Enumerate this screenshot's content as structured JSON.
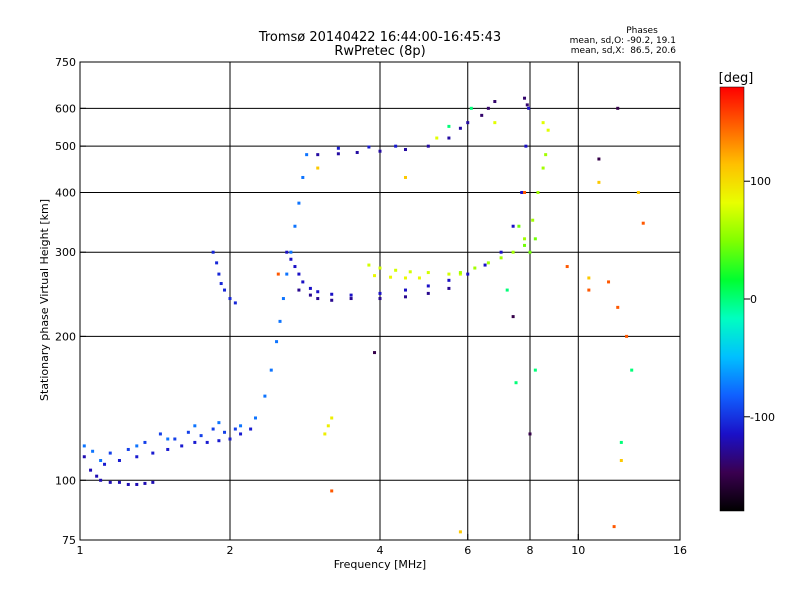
{
  "chart_data": {
    "type": "scatter",
    "title": "Tromsø 20140422 16:44:00-16:45:43",
    "subtitle": "RwPretec (8p)",
    "xlabel": "Frequency [MHz]",
    "ylabel": "Stationary phase Virtual Height [km]",
    "x_scale": "log",
    "y_scale": "log",
    "xlim": [
      1,
      16
    ],
    "ylim": [
      75,
      750
    ],
    "x_ticks": [
      1,
      2,
      4,
      6,
      8,
      10,
      16
    ],
    "y_ticks": [
      75,
      100,
      200,
      300,
      400,
      500,
      600,
      750
    ],
    "grid": true,
    "stats": {
      "title": "Phases",
      "line1": "mean, sd,O: -90.2, 19.1",
      "line2": "mean, sd,X:  86.5, 20.6"
    },
    "colorbar": {
      "label": "[deg]",
      "range": [
        -180,
        180
      ],
      "ticks": [
        {
          "value": 100,
          "label": "100"
        },
        {
          "value": 0,
          "label": "0"
        },
        {
          "value": -100,
          "label": "-100"
        }
      ],
      "colors": [
        "#000000",
        "#3a0050",
        "#1a10c8",
        "#1060ff",
        "#00c0ff",
        "#00ffc0",
        "#00ff30",
        "#80ff00",
        "#e8ff00",
        "#ffc000",
        "#ff6000",
        "#ff0000"
      ]
    },
    "series": [
      {
        "phase": -120,
        "points": [
          [
            1.02,
            112
          ],
          [
            1.05,
            105
          ],
          [
            1.08,
            102
          ],
          [
            1.1,
            100
          ],
          [
            1.15,
            99
          ],
          [
            1.2,
            99
          ],
          [
            1.25,
            98
          ],
          [
            1.3,
            98
          ],
          [
            1.35,
            98.5
          ],
          [
            1.4,
            99
          ]
        ]
      },
      {
        "phase": -110,
        "points": [
          [
            1.12,
            108
          ],
          [
            1.2,
            110
          ],
          [
            1.3,
            112
          ],
          [
            1.4,
            114
          ],
          [
            1.5,
            116
          ],
          [
            1.6,
            118
          ],
          [
            1.7,
            120
          ],
          [
            1.8,
            120
          ],
          [
            1.9,
            121
          ],
          [
            2.0,
            122
          ],
          [
            2.1,
            125
          ],
          [
            2.2,
            128
          ]
        ]
      },
      {
        "phase": -95,
        "points": [
          [
            1.15,
            114
          ],
          [
            1.25,
            116
          ],
          [
            1.35,
            120
          ],
          [
            1.45,
            125
          ],
          [
            1.55,
            122
          ],
          [
            1.65,
            126
          ],
          [
            1.75,
            124
          ],
          [
            1.85,
            128
          ],
          [
            1.95,
            126
          ],
          [
            2.05,
            128
          ]
        ]
      },
      {
        "phase": -75,
        "points": [
          [
            1.02,
            118
          ],
          [
            1.06,
            115
          ],
          [
            1.1,
            110
          ],
          [
            1.3,
            118
          ],
          [
            1.5,
            122
          ],
          [
            1.7,
            130
          ],
          [
            1.9,
            132
          ],
          [
            2.1,
            130
          ],
          [
            2.25,
            135
          ],
          [
            2.35,
            150
          ],
          [
            2.42,
            170
          ],
          [
            2.48,
            195
          ],
          [
            2.52,
            215
          ],
          [
            2.56,
            240
          ],
          [
            2.6,
            270
          ],
          [
            2.65,
            300
          ],
          [
            2.7,
            340
          ],
          [
            2.75,
            380
          ],
          [
            2.8,
            430
          ],
          [
            2.85,
            480
          ]
        ]
      },
      {
        "phase": -115,
        "points": [
          [
            2.6,
            300
          ],
          [
            2.65,
            290
          ],
          [
            2.7,
            280
          ],
          [
            2.75,
            270
          ],
          [
            2.8,
            260
          ],
          [
            2.9,
            252
          ],
          [
            3.0,
            248
          ],
          [
            3.2,
            245
          ],
          [
            3.5,
            244
          ],
          [
            4.0,
            246
          ],
          [
            4.5,
            250
          ],
          [
            5.0,
            255
          ],
          [
            5.5,
            262
          ],
          [
            6.0,
            270
          ],
          [
            6.5,
            282
          ],
          [
            7.0,
            300
          ],
          [
            7.4,
            340
          ],
          [
            7.7,
            400
          ],
          [
            7.85,
            500
          ],
          [
            7.95,
            600
          ]
        ]
      },
      {
        "phase": -130,
        "points": [
          [
            2.75,
            250
          ],
          [
            2.9,
            244
          ],
          [
            3.0,
            240
          ],
          [
            3.2,
            238
          ],
          [
            3.5,
            240
          ],
          [
            4.0,
            240
          ],
          [
            4.5,
            242
          ],
          [
            5.0,
            246
          ],
          [
            5.5,
            252
          ]
        ]
      },
      {
        "phase": -125,
        "points": [
          [
            3.0,
            480
          ],
          [
            3.3,
            482
          ],
          [
            3.6,
            485
          ],
          [
            4.0,
            488
          ],
          [
            4.5,
            492
          ],
          [
            5.0,
            500
          ],
          [
            5.5,
            520
          ],
          [
            5.8,
            545
          ],
          [
            6.0,
            560
          ]
        ]
      },
      {
        "phase": -110,
        "points": [
          [
            3.3,
            495
          ],
          [
            3.8,
            498
          ],
          [
            4.3,
            500
          ]
        ]
      },
      {
        "phase": -105,
        "points": [
          [
            1.85,
            300
          ],
          [
            1.88,
            285
          ],
          [
            1.9,
            270
          ],
          [
            1.92,
            258
          ],
          [
            1.95,
            250
          ],
          [
            2.0,
            240
          ],
          [
            2.05,
            235
          ]
        ]
      },
      {
        "phase": 75,
        "points": [
          [
            3.8,
            282
          ],
          [
            4.0,
            278
          ],
          [
            4.3,
            275
          ],
          [
            4.6,
            273
          ],
          [
            5.0,
            272
          ],
          [
            5.5,
            270
          ],
          [
            5.8,
            270
          ]
        ]
      },
      {
        "phase": 85,
        "points": [
          [
            3.9,
            268
          ],
          [
            4.2,
            266
          ],
          [
            4.5,
            265
          ],
          [
            4.8,
            265
          ]
        ]
      },
      {
        "phase": 60,
        "points": [
          [
            5.8,
            272
          ],
          [
            6.2,
            278
          ],
          [
            6.6,
            285
          ],
          [
            7.0,
            292
          ],
          [
            7.4,
            300
          ],
          [
            7.8,
            320
          ],
          [
            8.1,
            350
          ],
          [
            8.3,
            400
          ],
          [
            8.5,
            450
          ],
          [
            8.6,
            480
          ]
        ]
      },
      {
        "phase": 45,
        "points": [
          [
            7.6,
            340
          ],
          [
            7.8,
            310
          ],
          [
            8.0,
            300
          ],
          [
            8.2,
            320
          ]
        ]
      },
      {
        "phase": 90,
        "points": [
          [
            3.1,
            125
          ],
          [
            3.15,
            130
          ],
          [
            3.2,
            135
          ]
        ]
      },
      {
        "phase": -140,
        "points": [
          [
            6.4,
            580
          ],
          [
            6.6,
            600
          ],
          [
            6.8,
            620
          ],
          [
            7.8,
            630
          ],
          [
            7.9,
            610
          ]
        ]
      },
      {
        "phase": 80,
        "points": [
          [
            6.8,
            560
          ],
          [
            8.5,
            560
          ],
          [
            8.7,
            540
          ],
          [
            5.2,
            520
          ]
        ]
      },
      {
        "phase": 0,
        "points": [
          [
            5.5,
            550
          ],
          [
            6.1,
            600
          ],
          [
            7.2,
            250
          ],
          [
            7.5,
            160
          ],
          [
            8.2,
            170
          ],
          [
            12.2,
            120
          ],
          [
            12.8,
            170
          ]
        ]
      },
      {
        "phase": 150,
        "points": [
          [
            3.2,
            95
          ],
          [
            2.5,
            270
          ],
          [
            9.5,
            280
          ],
          [
            10.5,
            250
          ],
          [
            11.5,
            260
          ],
          [
            12.5,
            200
          ],
          [
            13.5,
            345
          ],
          [
            12.0,
            230
          ],
          [
            7.8,
            400
          ],
          [
            11.8,
            80
          ]
        ]
      },
      {
        "phase": 110,
        "points": [
          [
            4.5,
            430
          ],
          [
            3.0,
            450
          ],
          [
            11.0,
            420
          ],
          [
            13.2,
            400
          ],
          [
            12.2,
            110
          ],
          [
            10.5,
            265
          ],
          [
            5.8,
            78
          ]
        ]
      },
      {
        "phase": -150,
        "points": [
          [
            3.9,
            185
          ],
          [
            8.0,
            125
          ],
          [
            7.4,
            220
          ],
          [
            12.0,
            600
          ],
          [
            11.0,
            470
          ]
        ]
      }
    ]
  }
}
